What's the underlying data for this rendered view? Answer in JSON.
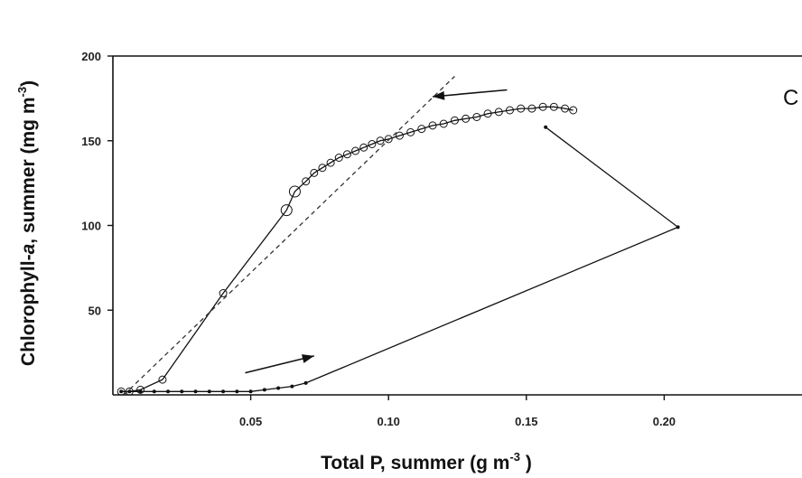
{
  "chart_data": {
    "type": "line",
    "panel_label": "C",
    "xlabel_main": "Total P, summer (g m",
    "xlabel_sup": "-3",
    "xlabel_end": " )",
    "ylabel_main": "Chlorophyll-",
    "ylabel_italic": "a",
    "ylabel_rest": ", summer (mg m",
    "ylabel_sup": "-3",
    "ylabel_end": ")",
    "xlim": [
      0.0,
      0.25
    ],
    "ylim": [
      0,
      200
    ],
    "x_ticks": [
      {
        "value": 0.05,
        "label": "0.05"
      },
      {
        "value": 0.1,
        "label": "0.10"
      },
      {
        "value": 0.15,
        "label": "0.15"
      },
      {
        "value": 0.2,
        "label": "0.20"
      }
    ],
    "y_ticks": [
      {
        "value": 50,
        "label": "50"
      },
      {
        "value": 100,
        "label": "100"
      },
      {
        "value": 150,
        "label": "150"
      },
      {
        "value": 200,
        "label": "200"
      }
    ],
    "grid": false,
    "series": [
      {
        "style": "line-small-dots",
        "color": "#111111",
        "x": [
          0.003,
          0.006,
          0.01,
          0.015,
          0.02,
          0.025,
          0.03,
          0.035,
          0.04,
          0.045,
          0.05,
          0.055,
          0.06,
          0.065,
          0.07,
          0.205,
          0.157
        ],
        "y": [
          2,
          2,
          2,
          2,
          2,
          2,
          2,
          2,
          2,
          2,
          2,
          3,
          4,
          5,
          7,
          99,
          158
        ]
      },
      {
        "style": "line-open-circles",
        "color": "#111111",
        "x": [
          0.003,
          0.006,
          0.01,
          0.018,
          0.04,
          0.063,
          0.066,
          0.07,
          0.073,
          0.076,
          0.079,
          0.082,
          0.085,
          0.088,
          0.091,
          0.094,
          0.097,
          0.1,
          0.104,
          0.108,
          0.112,
          0.116,
          0.12,
          0.124,
          0.128,
          0.132,
          0.136,
          0.14,
          0.144,
          0.148,
          0.152,
          0.156,
          0.16,
          0.164,
          0.167
        ],
        "y": [
          2,
          2,
          3,
          9,
          60,
          109,
          120,
          126,
          131,
          134,
          137,
          140,
          142,
          144,
          146,
          148,
          150,
          151,
          153,
          155,
          157,
          159,
          160,
          162,
          163,
          164,
          166,
          167,
          168,
          169,
          169,
          170,
          170,
          169,
          168
        ]
      },
      {
        "style": "dashed-trend",
        "color": "#333333",
        "x": [
          0.004,
          0.124
        ],
        "y": [
          0,
          188
        ]
      }
    ],
    "annotations": [
      {
        "kind": "arrow",
        "from": [
          0.048,
          13
        ],
        "to": [
          0.073,
          23
        ]
      },
      {
        "kind": "arrow",
        "from": [
          0.143,
          180
        ],
        "to": [
          0.116,
          176
        ]
      }
    ]
  }
}
